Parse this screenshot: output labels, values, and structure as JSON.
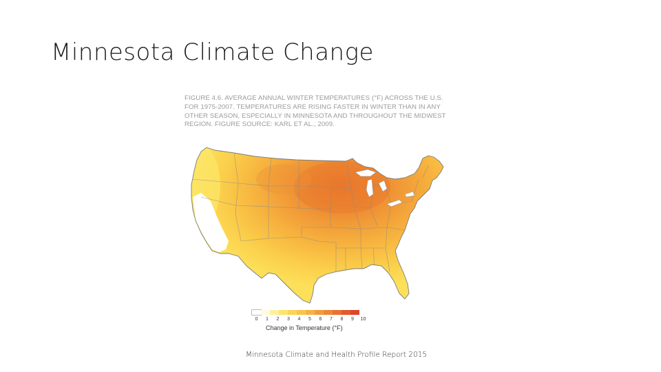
{
  "slide": {
    "title": "Minnesota Climate Change",
    "caption": "FIGURE 4.6. AVERAGE ANNUAL WINTER TEMPERATURES (°F) ACROSS THE U.S. FOR 1975-2007. TEMPERATURES ARE RISING FASTER IN WINTER THAN IN ANY OTHER SEASON, ESPECIALLY IN MINNESOTA AND THROUGHOUT THE MIDWEST REGION. FIGURE SOURCE: KARL ET AL., 2009.",
    "source": "Minnesota Climate and Health Profile Report 2015"
  },
  "map": {
    "region": "Contiguous United States",
    "measure": "Change in winter temperature (°F), 1975-2007",
    "colors": {
      "low": "#fce15a",
      "mid": "#f7b13a",
      "high": "#e8742a",
      "cooler": "#ffffff",
      "border": "#8a8a8a"
    }
  },
  "legend": {
    "title": "Change in Temperature (°F)",
    "ticks": [
      "0",
      "1",
      "2",
      "3",
      "4",
      "5",
      "6",
      "7",
      "8",
      "9",
      "10"
    ],
    "swatches": [
      "#ffffff",
      "#fffbe0",
      "#fdf0a0",
      "#fde46a",
      "#fbd455",
      "#f9c44b",
      "#f6b142",
      "#f29b3c",
      "#ee8636",
      "#e97030",
      "#e35a2b",
      "#dd462a"
    ]
  }
}
